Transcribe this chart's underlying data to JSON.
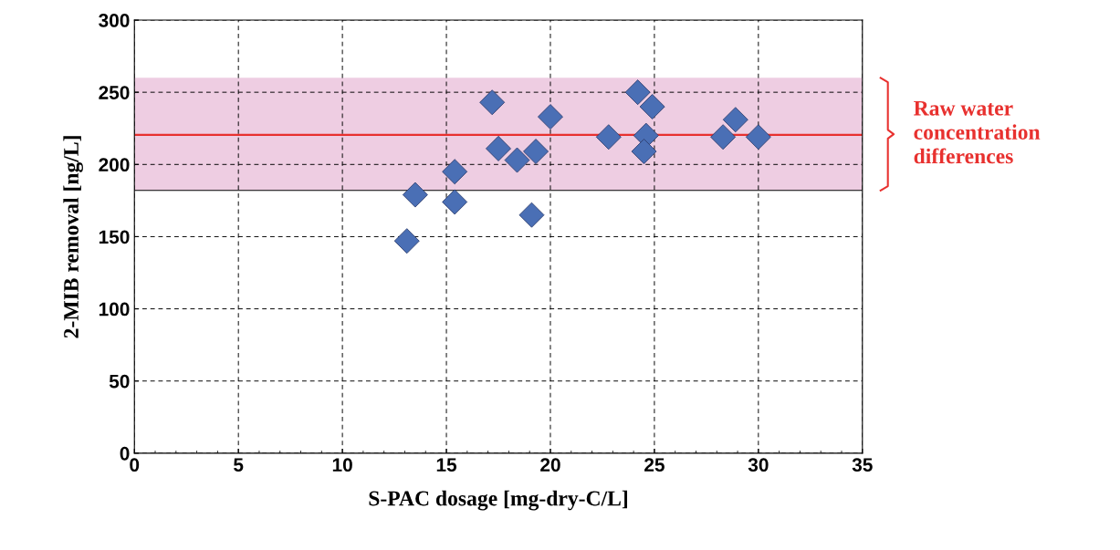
{
  "chart_data": {
    "type": "scatter",
    "xlabel": "S-PAC dosage [mg-dry-C/L]",
    "ylabel": "2-MIB removal [ng/L]",
    "x": [
      13.1,
      13.5,
      15.4,
      15.4,
      17.2,
      17.5,
      18.4,
      19.1,
      19.3,
      20.0,
      22.8,
      24.2,
      24.6,
      24.5,
      24.9,
      28.3,
      28.9,
      30.0
    ],
    "series": [
      {
        "color": "#4a6fb5",
        "values": [
          147,
          179,
          195,
          174,
          243,
          211,
          203,
          165,
          209,
          233,
          219,
          250,
          220,
          209,
          240,
          219,
          231,
          219
        ]
      }
    ],
    "xlim": [
      0,
      35
    ],
    "xticks": [
      0,
      5,
      10,
      15,
      20,
      25,
      30,
      35
    ],
    "ylim": [
      0,
      300
    ],
    "yticks": [
      0,
      50,
      100,
      150,
      200,
      250,
      300
    ],
    "grid": true,
    "marker": "diamond",
    "ref_lines": [
      {
        "axis": "y",
        "value": 220.5,
        "color": "#e8312f"
      },
      {
        "axis": "y",
        "value": 182,
        "color": "#000000"
      }
    ],
    "bands": [
      {
        "axis": "y",
        "from": 182,
        "to": 260,
        "color": "#eecde2",
        "label": "Raw water\nconcentration\ndifferences"
      }
    ]
  }
}
